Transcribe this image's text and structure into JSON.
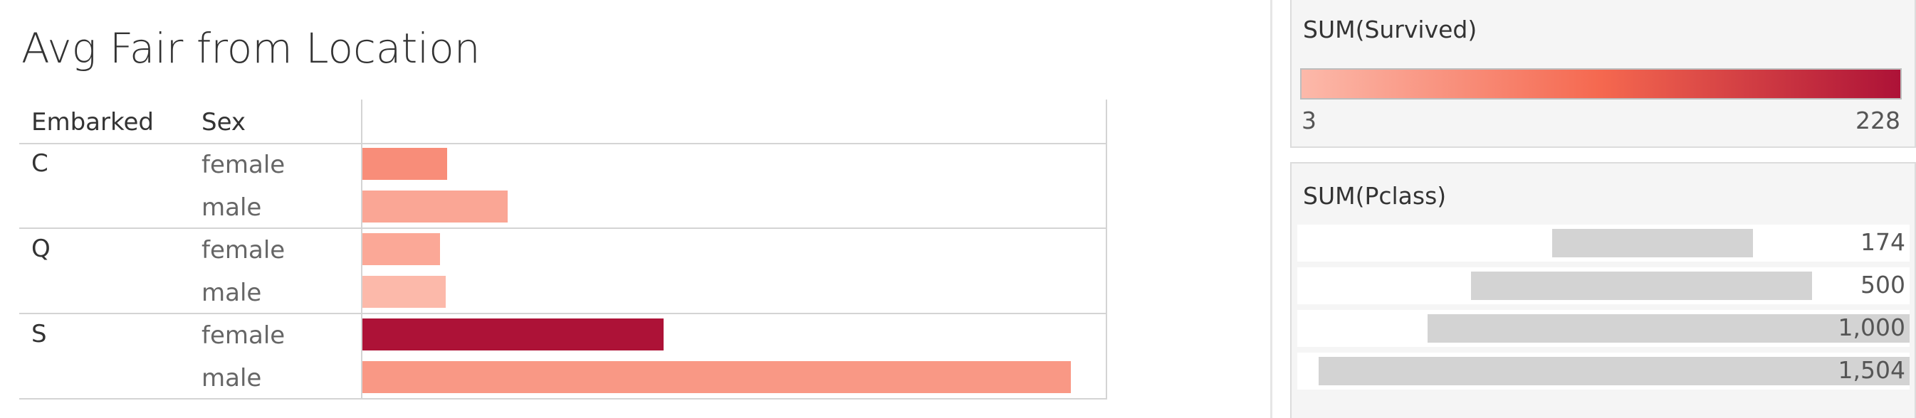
{
  "chart_data": {
    "type": "bar",
    "title": "Avg Fair from Location",
    "row_headers": [
      "Embarked",
      "Sex"
    ],
    "rows": [
      {
        "embarked": "C",
        "sex": "female",
        "avg_fare": 12,
        "survived": 64
      },
      {
        "embarked": "C",
        "sex": "male",
        "avg_fare": 20.5,
        "survived": 29
      },
      {
        "embarked": "Q",
        "sex": "female",
        "avg_fare": 11,
        "survived": 27
      },
      {
        "embarked": "Q",
        "sex": "male",
        "avg_fare": 11.8,
        "survived": 3
      },
      {
        "embarked": "S",
        "sex": "female",
        "avg_fare": 42.5,
        "survived": 228
      },
      {
        "embarked": "S",
        "sex": "male",
        "avg_fare": 100,
        "survived": 49
      }
    ],
    "color_legend": {
      "title": "SUM(Survived)",
      "min": 3,
      "max": 228,
      "min_label": "3",
      "max_label": "228",
      "colors": [
        "#fcb9aa",
        "#f5684f",
        "#ad1237"
      ]
    },
    "size_legend": {
      "title": "SUM(Pclass)",
      "items": [
        {
          "value": 174,
          "label": "174"
        },
        {
          "value": 500,
          "label": "500"
        },
        {
          "value": 1000,
          "label": "1,000"
        },
        {
          "value": 1504,
          "label": "1,504"
        }
      ]
    }
  }
}
